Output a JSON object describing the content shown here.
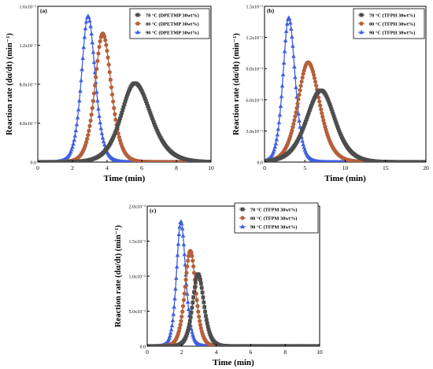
{
  "chart_data": [
    {
      "panel": "(a)",
      "type": "line",
      "xlabel": "Time (min)",
      "ylabel": "Reaction rate (dα/dt) (min⁻¹)",
      "xlim": [
        0,
        10
      ],
      "ylim": [
        0,
        0.016
      ],
      "xticks": [
        "0",
        "2",
        "4",
        "6",
        "8",
        "10"
      ],
      "yticks": [
        "0.0",
        "4.0x10⁻³",
        "8.0x10⁻³",
        "1.2x10⁻²",
        "1.6x10⁻²"
      ],
      "legend_position": "top-right",
      "series": [
        {
          "name": "70 °C (DPETMP 30wt%)",
          "color": "#4d4d4d",
          "marker": "square",
          "peak_x": 5.6,
          "peak_y": 0.0081,
          "rise": 1.05,
          "fall": 1.25,
          "x_min": 0,
          "x_max": 10,
          "x_step": 0.05
        },
        {
          "name": "80 °C (DPETMP 30wt%)",
          "color": "#b5603a",
          "marker": "circle",
          "peak_x": 3.75,
          "peak_y": 0.0132,
          "rise": 0.6,
          "fall": 0.65,
          "x_min": 0,
          "x_max": 10,
          "x_step": 0.04
        },
        {
          "name": "90 °C (DPETMP 30wt%)",
          "color": "#3f5fe0",
          "marker": "triangle",
          "peak_x": 2.9,
          "peak_y": 0.015,
          "rise": 0.5,
          "fall": 0.55,
          "x_min": 0,
          "x_max": 10,
          "x_step": 0.04
        }
      ]
    },
    {
      "panel": "(b)",
      "type": "line",
      "xlabel": "Time (min)",
      "ylabel": "Reaction rate (dα/dt) (min⁻¹)",
      "xlim": [
        0,
        20
      ],
      "ylim": [
        0,
        0.015
      ],
      "xticks": [
        "0",
        "5",
        "10",
        "15",
        "20"
      ],
      "yticks": [
        "0.0",
        "3.0x10⁻³",
        "6.0x10⁻³",
        "9.0x10⁻³",
        "1.2x10⁻²",
        "1.5x10⁻²"
      ],
      "legend_position": "top-right",
      "series": [
        {
          "name": "70 °C (TFPH 30wt%)",
          "color": "#4d4d4d",
          "marker": "square",
          "peak_x": 7.0,
          "peak_y": 0.0069,
          "rise": 2.4,
          "fall": 2.3,
          "x_min": 0,
          "x_max": 20,
          "x_step": 0.1
        },
        {
          "name": "80 °C (TFPH 30wt%)",
          "color": "#b5603a",
          "marker": "circle",
          "peak_x": 5.4,
          "peak_y": 0.0096,
          "rise": 1.7,
          "fall": 1.9,
          "x_min": 0,
          "x_max": 20,
          "x_step": 0.08
        },
        {
          "name": "90 °C (TFPH 30wt%)",
          "color": "#3f5fe0",
          "marker": "triangle",
          "peak_x": 3.0,
          "peak_y": 0.0139,
          "rise": 0.95,
          "fall": 1.05,
          "x_min": 0,
          "x_max": 20,
          "x_step": 0.06
        }
      ]
    },
    {
      "panel": "(c)",
      "type": "line",
      "xlabel": "Time (min)",
      "ylabel": "Reaction rate (dα/dt) (min⁻¹)",
      "xlim": [
        0,
        10
      ],
      "ylim": [
        0,
        0.021
      ],
      "xticks": [
        "0",
        "2",
        "4",
        "6",
        "8",
        "10"
      ],
      "yticks": [
        "0.0",
        "5.0x10⁻³",
        "1.0x10⁻²",
        "1.5x10⁻²",
        "2.0x10⁻²"
      ],
      "legend_position": "top-right",
      "series": [
        {
          "name": "70 °C (TFPM 30wt%)",
          "color": "#4d4d4d",
          "marker": "square",
          "peak_x": 2.95,
          "peak_y": 0.0108,
          "rise": 0.42,
          "fall": 0.45,
          "x_min": 0,
          "x_max": 10,
          "x_step": 0.04
        },
        {
          "name": "80 °C (TFPM 30wt%)",
          "color": "#b5603a",
          "marker": "circle",
          "peak_x": 2.5,
          "peak_y": 0.0143,
          "rise": 0.42,
          "fall": 0.42,
          "x_min": 0,
          "x_max": 10,
          "x_step": 0.04
        },
        {
          "name": "90 °C (TFPM 30wt%)",
          "color": "#3f5fe0",
          "marker": "triangle",
          "peak_x": 1.95,
          "peak_y": 0.0187,
          "rise": 0.33,
          "fall": 0.37,
          "x_min": 0,
          "x_max": 10,
          "x_step": 0.03
        }
      ]
    }
  ]
}
